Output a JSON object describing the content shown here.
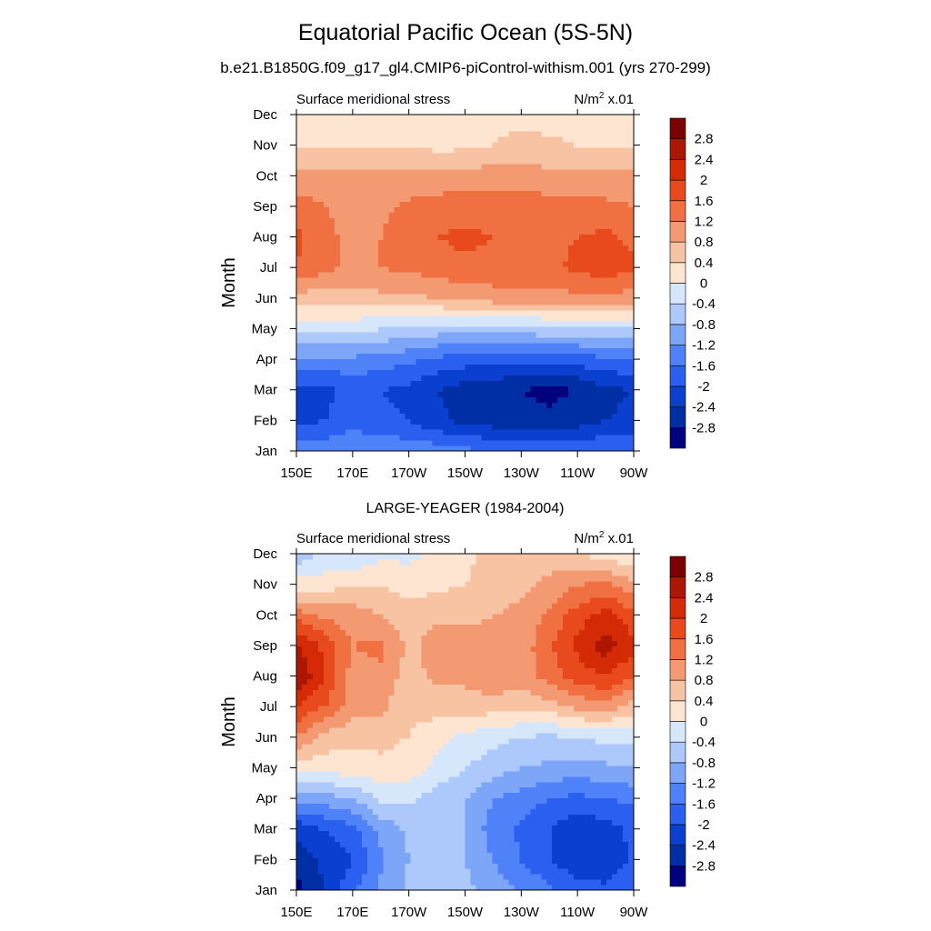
{
  "title": "Equatorial Pacific Ocean (5S-5N)",
  "subtitle": "b.e21.B1850G.f09_g17_gl4.CMIP6-piControl-withism.001 (yrs 270-299)",
  "colors": [
    "#00007f",
    "#002fa5",
    "#0a3fd0",
    "#2a5ff0",
    "#4f82f8",
    "#7da6f9",
    "#adc8fa",
    "#d6e6fb",
    "#fde5d2",
    "#f8c3a2",
    "#f39a72",
    "#f07042",
    "#e84a1d",
    "#d42a06",
    "#ad1600",
    "#7d0000"
  ],
  "chart_data": [
    {
      "type": "heatmap",
      "title": "",
      "left_label": "Surface meridional stress",
      "units_label": "N/m",
      "units_sup": "2",
      "units_suffix": " x.01",
      "ylabel": "Month",
      "x_ticks": [
        "150E",
        "170E",
        "170W",
        "150W",
        "130W",
        "110W",
        "90W"
      ],
      "x_range": [
        150,
        270
      ],
      "y_ticks": [
        "Jan",
        "Feb",
        "Mar",
        "Apr",
        "May",
        "Jun",
        "Jul",
        "Aug",
        "Sep",
        "Oct",
        "Nov",
        "Dec"
      ],
      "y_range": [
        1,
        12
      ],
      "levels": [
        "-2.8",
        "-2.4",
        "-2",
        "-1.6",
        "-1.2",
        "-0.8",
        "-0.4",
        "0",
        "0.4",
        "0.8",
        "1.2",
        "1.6",
        "2",
        "2.4",
        "2.8"
      ],
      "lon": [
        150,
        160,
        170,
        180,
        190,
        200,
        210,
        220,
        230,
        240,
        250,
        260,
        270
      ],
      "month": [
        1,
        2,
        3,
        4,
        5,
        6,
        7,
        8,
        9,
        10,
        11,
        12
      ],
      "values": [
        [
          -1.3,
          -1.3,
          -1.2,
          -1.3,
          -1.3,
          -1.4,
          -1.5,
          -1.6,
          -1.7,
          -1.7,
          -1.7,
          -1.6,
          -1.6
        ],
        [
          -2.1,
          -2.0,
          -1.8,
          -1.9,
          -2.0,
          -2.3,
          -2.5,
          -2.6,
          -2.7,
          -2.7,
          -2.6,
          -2.4,
          -2.3
        ],
        [
          -2.2,
          -2.1,
          -1.9,
          -2.0,
          -2.1,
          -2.4,
          -2.6,
          -2.7,
          -2.8,
          -2.9,
          -2.8,
          -2.5,
          -2.4
        ],
        [
          -1.3,
          -1.3,
          -1.3,
          -1.4,
          -1.5,
          -1.7,
          -1.8,
          -1.9,
          -1.9,
          -1.9,
          -1.8,
          -1.7,
          -1.6
        ],
        [
          -0.3,
          -0.3,
          -0.3,
          -0.4,
          -0.5,
          -0.6,
          -0.6,
          -0.6,
          -0.6,
          -0.5,
          -0.5,
          -0.4,
          -0.4
        ],
        [
          0.6,
          0.6,
          0.6,
          0.7,
          0.7,
          0.8,
          0.9,
          1.0,
          1.0,
          1.0,
          1.1,
          1.1,
          1.0
        ],
        [
          1.6,
          1.3,
          1.1,
          1.2,
          1.3,
          1.4,
          1.5,
          1.5,
          1.5,
          1.5,
          1.7,
          1.8,
          1.7
        ],
        [
          1.7,
          1.3,
          1.1,
          1.2,
          1.4,
          1.6,
          1.7,
          1.6,
          1.5,
          1.5,
          1.6,
          1.7,
          1.5
        ],
        [
          1.4,
          1.2,
          1.1,
          1.1,
          1.3,
          1.4,
          1.4,
          1.4,
          1.4,
          1.4,
          1.4,
          1.3,
          1.2
        ],
        [
          0.9,
          0.9,
          0.9,
          0.9,
          0.9,
          0.9,
          1.0,
          1.0,
          1.0,
          0.9,
          0.9,
          0.9,
          0.9
        ],
        [
          0.4,
          0.4,
          0.4,
          0.4,
          0.4,
          0.3,
          0.3,
          0.4,
          0.5,
          0.5,
          0.4,
          0.4,
          0.4
        ],
        [
          0.0,
          0.1,
          0.1,
          0.2,
          0.2,
          0.2,
          0.2,
          0.3,
          0.3,
          0.2,
          0.2,
          0.2,
          0.1
        ]
      ]
    },
    {
      "type": "heatmap",
      "title": "LARGE-YEAGER (1984-2004)",
      "left_label": "Surface meridional stress",
      "units_label": "N/m",
      "units_sup": "2",
      "units_suffix": " x.01",
      "ylabel": "Month",
      "x_ticks": [
        "150E",
        "170E",
        "170W",
        "150W",
        "130W",
        "110W",
        "90W"
      ],
      "x_range": [
        150,
        270
      ],
      "y_ticks": [
        "Jan",
        "Feb",
        "Mar",
        "Apr",
        "May",
        "Jun",
        "Jul",
        "Aug",
        "Sep",
        "Oct",
        "Nov",
        "Dec"
      ],
      "y_range": [
        1,
        12
      ],
      "levels": [
        "-2.8",
        "-2.4",
        "-2",
        "-1.6",
        "-1.2",
        "-0.8",
        "-0.4",
        "0",
        "0.4",
        "0.8",
        "1.2",
        "1.6",
        "2",
        "2.4",
        "2.8"
      ],
      "lon": [
        150,
        160,
        170,
        180,
        190,
        200,
        210,
        220,
        230,
        240,
        250,
        260,
        270
      ],
      "month": [
        1,
        2,
        3,
        4,
        5,
        6,
        7,
        8,
        9,
        10,
        11,
        12
      ],
      "values": [
        [
          -2.9,
          -2.4,
          -1.7,
          -1.1,
          -0.7,
          -0.6,
          -0.7,
          -1.0,
          -1.2,
          -1.5,
          -1.8,
          -1.9,
          -1.6
        ],
        [
          -2.7,
          -2.3,
          -2.0,
          -1.3,
          -0.8,
          -0.7,
          -0.8,
          -1.2,
          -1.6,
          -2.0,
          -2.3,
          -2.3,
          -1.9
        ],
        [
          -2.3,
          -2.0,
          -1.7,
          -1.1,
          -0.7,
          -0.6,
          -0.8,
          -1.4,
          -1.7,
          -2.0,
          -2.3,
          -2.2,
          -1.9
        ],
        [
          -1.1,
          -1.0,
          -0.8,
          -0.3,
          -0.3,
          -0.6,
          -0.8,
          -1.2,
          -1.4,
          -1.6,
          -1.7,
          -1.6,
          -1.5
        ],
        [
          0.1,
          0.2,
          0.2,
          0.3,
          0.2,
          -0.1,
          -0.4,
          -0.6,
          -0.8,
          -0.9,
          -1.0,
          -0.9,
          -0.8
        ],
        [
          1.2,
          0.6,
          0.5,
          0.5,
          0.4,
          0.1,
          -0.1,
          -0.3,
          -0.4,
          -0.5,
          -0.4,
          -0.3,
          -0.3
        ],
        [
          2.0,
          1.6,
          1.0,
          0.9,
          0.5,
          0.6,
          0.6,
          0.6,
          0.5,
          0.6,
          0.9,
          1.0,
          0.6
        ],
        [
          2.8,
          2.0,
          1.0,
          1.1,
          0.6,
          0.9,
          0.9,
          1.1,
          1.0,
          1.4,
          1.8,
          2.0,
          1.6
        ],
        [
          2.5,
          1.9,
          1.2,
          1.3,
          0.7,
          1.0,
          1.0,
          0.9,
          1.0,
          1.5,
          2.1,
          2.6,
          2.1
        ],
        [
          1.4,
          1.1,
          1.0,
          0.8,
          0.6,
          0.7,
          0.7,
          0.8,
          0.9,
          1.3,
          1.8,
          2.2,
          1.7
        ],
        [
          0.2,
          0.2,
          0.4,
          0.4,
          0.2,
          0.3,
          0.4,
          0.6,
          0.7,
          0.9,
          1.2,
          1.3,
          0.9
        ],
        [
          -0.7,
          -0.3,
          -0.4,
          -0.1,
          -0.1,
          0.1,
          0.3,
          0.5,
          0.6,
          0.6,
          0.4,
          0.2,
          0.0
        ]
      ]
    }
  ]
}
